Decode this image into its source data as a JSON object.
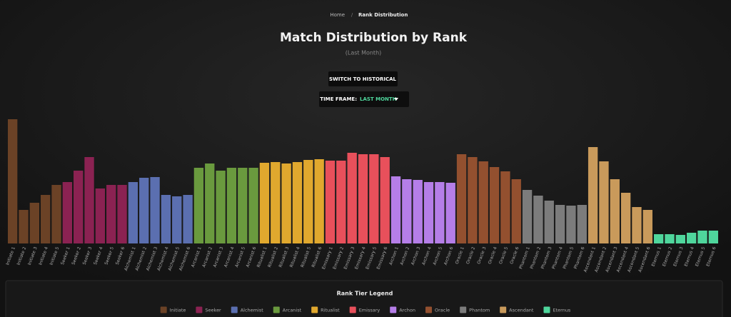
{
  "breadcrumb": [
    "Home",
    "Rank Distribution"
  ],
  "controls": {
    "switch_button": "SWITCH TO HISTORICAL",
    "time_frame_label": "TIME FRAME:",
    "time_frame_value": "LAST MONTH"
  },
  "chart_data": {
    "type": "bar",
    "title": "Match Distribution by Rank",
    "subtitle": "(Last Month)",
    "legend_title": "Rank Tier Legend",
    "series": [
      {
        "name": "Initiate",
        "color": "#6b4226",
        "categories": [
          "Initiate 1",
          "Initiate 2",
          "Initiate 3",
          "Initiate 4",
          "Initiate 5"
        ],
        "values": [
          174,
          47,
          57,
          68,
          82
        ]
      },
      {
        "name": "Seeker",
        "color": "#8b2252",
        "categories": [
          "Seeker 1",
          "Seeker 2",
          "Seeker 3",
          "Seeker 4",
          "Seeker 5",
          "Seeker 6"
        ],
        "values": [
          86,
          102,
          121,
          77,
          82,
          82
        ]
      },
      {
        "name": "Alchemist",
        "color": "#5b6fb0",
        "categories": [
          "Alchemist 1",
          "Alchemist 2",
          "Alchemist 3",
          "Alchemist 4",
          "Alchemist 5",
          "Alchemist 6"
        ],
        "values": [
          86,
          92,
          93,
          68,
          66,
          68
        ]
      },
      {
        "name": "Arcanist",
        "color": "#6a9a3e",
        "categories": [
          "Arcanist 1",
          "Arcanist 2",
          "Arcanist 3",
          "Arcanist 4",
          "Arcanist 5",
          "Arcanist 6"
        ],
        "values": [
          106,
          112,
          102,
          106,
          106,
          106
        ]
      },
      {
        "name": "Ritualist",
        "color": "#e0a82e",
        "categories": [
          "Ritualist 1",
          "Ritualist 2",
          "Ritualist 3",
          "Ritualist 4",
          "Ritualist 5",
          "Ritualist 6"
        ],
        "values": [
          113,
          114,
          112,
          114,
          117,
          118
        ]
      },
      {
        "name": "Emissary",
        "color": "#e8505b",
        "categories": [
          "Emissary 1",
          "Emissary 2",
          "Emissary 3",
          "Emissary 4",
          "Emissary 5",
          "Emissary 6"
        ],
        "values": [
          116,
          116,
          127,
          125,
          125,
          121
        ]
      },
      {
        "name": "Archon",
        "color": "#b57ee8",
        "categories": [
          "Archon 1",
          "Archon 2",
          "Archon 3",
          "Archon 4",
          "Archon 5",
          "Archon 6"
        ],
        "values": [
          94,
          90,
          89,
          86,
          86,
          85
        ]
      },
      {
        "name": "Oracle",
        "color": "#93502f",
        "categories": [
          "Oracle 1",
          "Oracle 2",
          "Oracle 3",
          "Oracle 4",
          "Oracle 5",
          "Oracle 6"
        ],
        "values": [
          125,
          121,
          115,
          107,
          101,
          90
        ]
      },
      {
        "name": "Phantom",
        "color": "#7c7c7c",
        "categories": [
          "Phantom 1",
          "Phantom 2",
          "Phantom 3",
          "Phantom 4",
          "Phantom 5",
          "Phantom 6"
        ],
        "values": [
          75,
          67,
          60,
          54,
          53,
          54
        ]
      },
      {
        "name": "Ascendant",
        "color": "#c99a5b",
        "categories": [
          "Ascendant 1",
          "Ascendant 2",
          "Ascendant 3",
          "Ascendant 4",
          "Ascendant 5",
          "Ascendant 6"
        ],
        "values": [
          135,
          115,
          90,
          71,
          51,
          47
        ]
      },
      {
        "name": "Eternus",
        "color": "#4fd69c",
        "categories": [
          "Eternus 1",
          "Eternus 2",
          "Eternus 3",
          "Eternus 4",
          "Eternus 5",
          "Eternus 6"
        ],
        "values": [
          13,
          13,
          12,
          15,
          18,
          18
        ]
      }
    ]
  }
}
